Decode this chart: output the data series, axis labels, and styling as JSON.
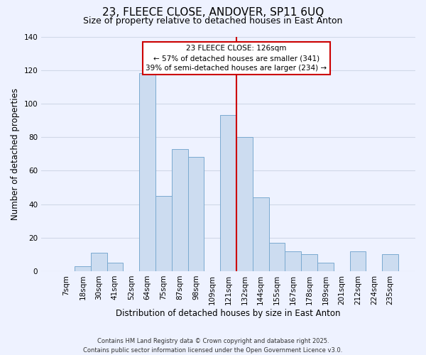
{
  "title": "23, FLEECE CLOSE, ANDOVER, SP11 6UQ",
  "subtitle": "Size of property relative to detached houses in East Anton",
  "xlabel": "Distribution of detached houses by size in East Anton",
  "ylabel": "Number of detached properties",
  "footer_line1": "Contains HM Land Registry data © Crown copyright and database right 2025.",
  "footer_line2": "Contains public sector information licensed under the Open Government Licence v3.0.",
  "bar_labels": [
    "7sqm",
    "18sqm",
    "30sqm",
    "41sqm",
    "52sqm",
    "64sqm",
    "75sqm",
    "87sqm",
    "98sqm",
    "109sqm",
    "121sqm",
    "132sqm",
    "144sqm",
    "155sqm",
    "167sqm",
    "178sqm",
    "189sqm",
    "201sqm",
    "212sqm",
    "224sqm",
    "235sqm"
  ],
  "bar_values": [
    0,
    3,
    11,
    5,
    0,
    118,
    45,
    73,
    68,
    0,
    93,
    80,
    44,
    17,
    12,
    10,
    5,
    0,
    12,
    0,
    10
  ],
  "bar_color": "#ccdcf0",
  "bar_edge_color": "#7aaad0",
  "ylim": [
    0,
    140
  ],
  "yticks": [
    0,
    20,
    40,
    60,
    80,
    100,
    120,
    140
  ],
  "annotation_title": "23 FLEECE CLOSE: 126sqm",
  "annotation_line2": "← 57% of detached houses are smaller (341)",
  "annotation_line3": "39% of semi-detached houses are larger (234) →",
  "vline_x_index": 10.5,
  "vline_color": "#cc0000",
  "background_color": "#eef2ff",
  "grid_color": "#d0d8e8",
  "title_fontsize": 11,
  "subtitle_fontsize": 9,
  "axis_label_fontsize": 8.5,
  "tick_fontsize": 7.5,
  "annotation_fontsize": 7.5
}
